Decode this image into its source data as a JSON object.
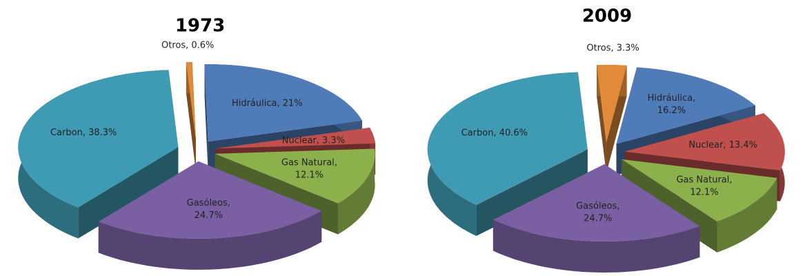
{
  "chart_data": [
    {
      "type": "pie",
      "title": "1973",
      "values": [
        0.6,
        21,
        3.3,
        12.1,
        24.7,
        38.3
      ],
      "value_labels": [
        "Otros, 0.6%",
        "Hidráulica, 21%",
        "Nuclear, 3.3%",
        "Gas Natural,\n12.1%",
        "Gasóleos,\n24.7%",
        "Carbon, 38.3%"
      ],
      "colors": [
        "#e08a3a",
        "#4f7cb8",
        "#c0504d",
        "#8cb04c",
        "#7a5fa2",
        "#3f9bb4"
      ]
    },
    {
      "type": "pie",
      "title": "2009",
      "values": [
        3.3,
        16.2,
        13.4,
        12.1,
        24.7,
        40.6
      ],
      "value_labels": [
        "Otros, 3.3%",
        "Hidráulica,\n16.2%",
        "Nuclear, 13.4%",
        "Gas Natural,\n12.1%",
        "Gasóleos,\n24.7%",
        "Carbon, 40.6%"
      ],
      "colors": [
        "#e08a3a",
        "#4f7cb8",
        "#c0504d",
        "#8cb04c",
        "#7a5fa2",
        "#3f9bb4"
      ]
    }
  ]
}
